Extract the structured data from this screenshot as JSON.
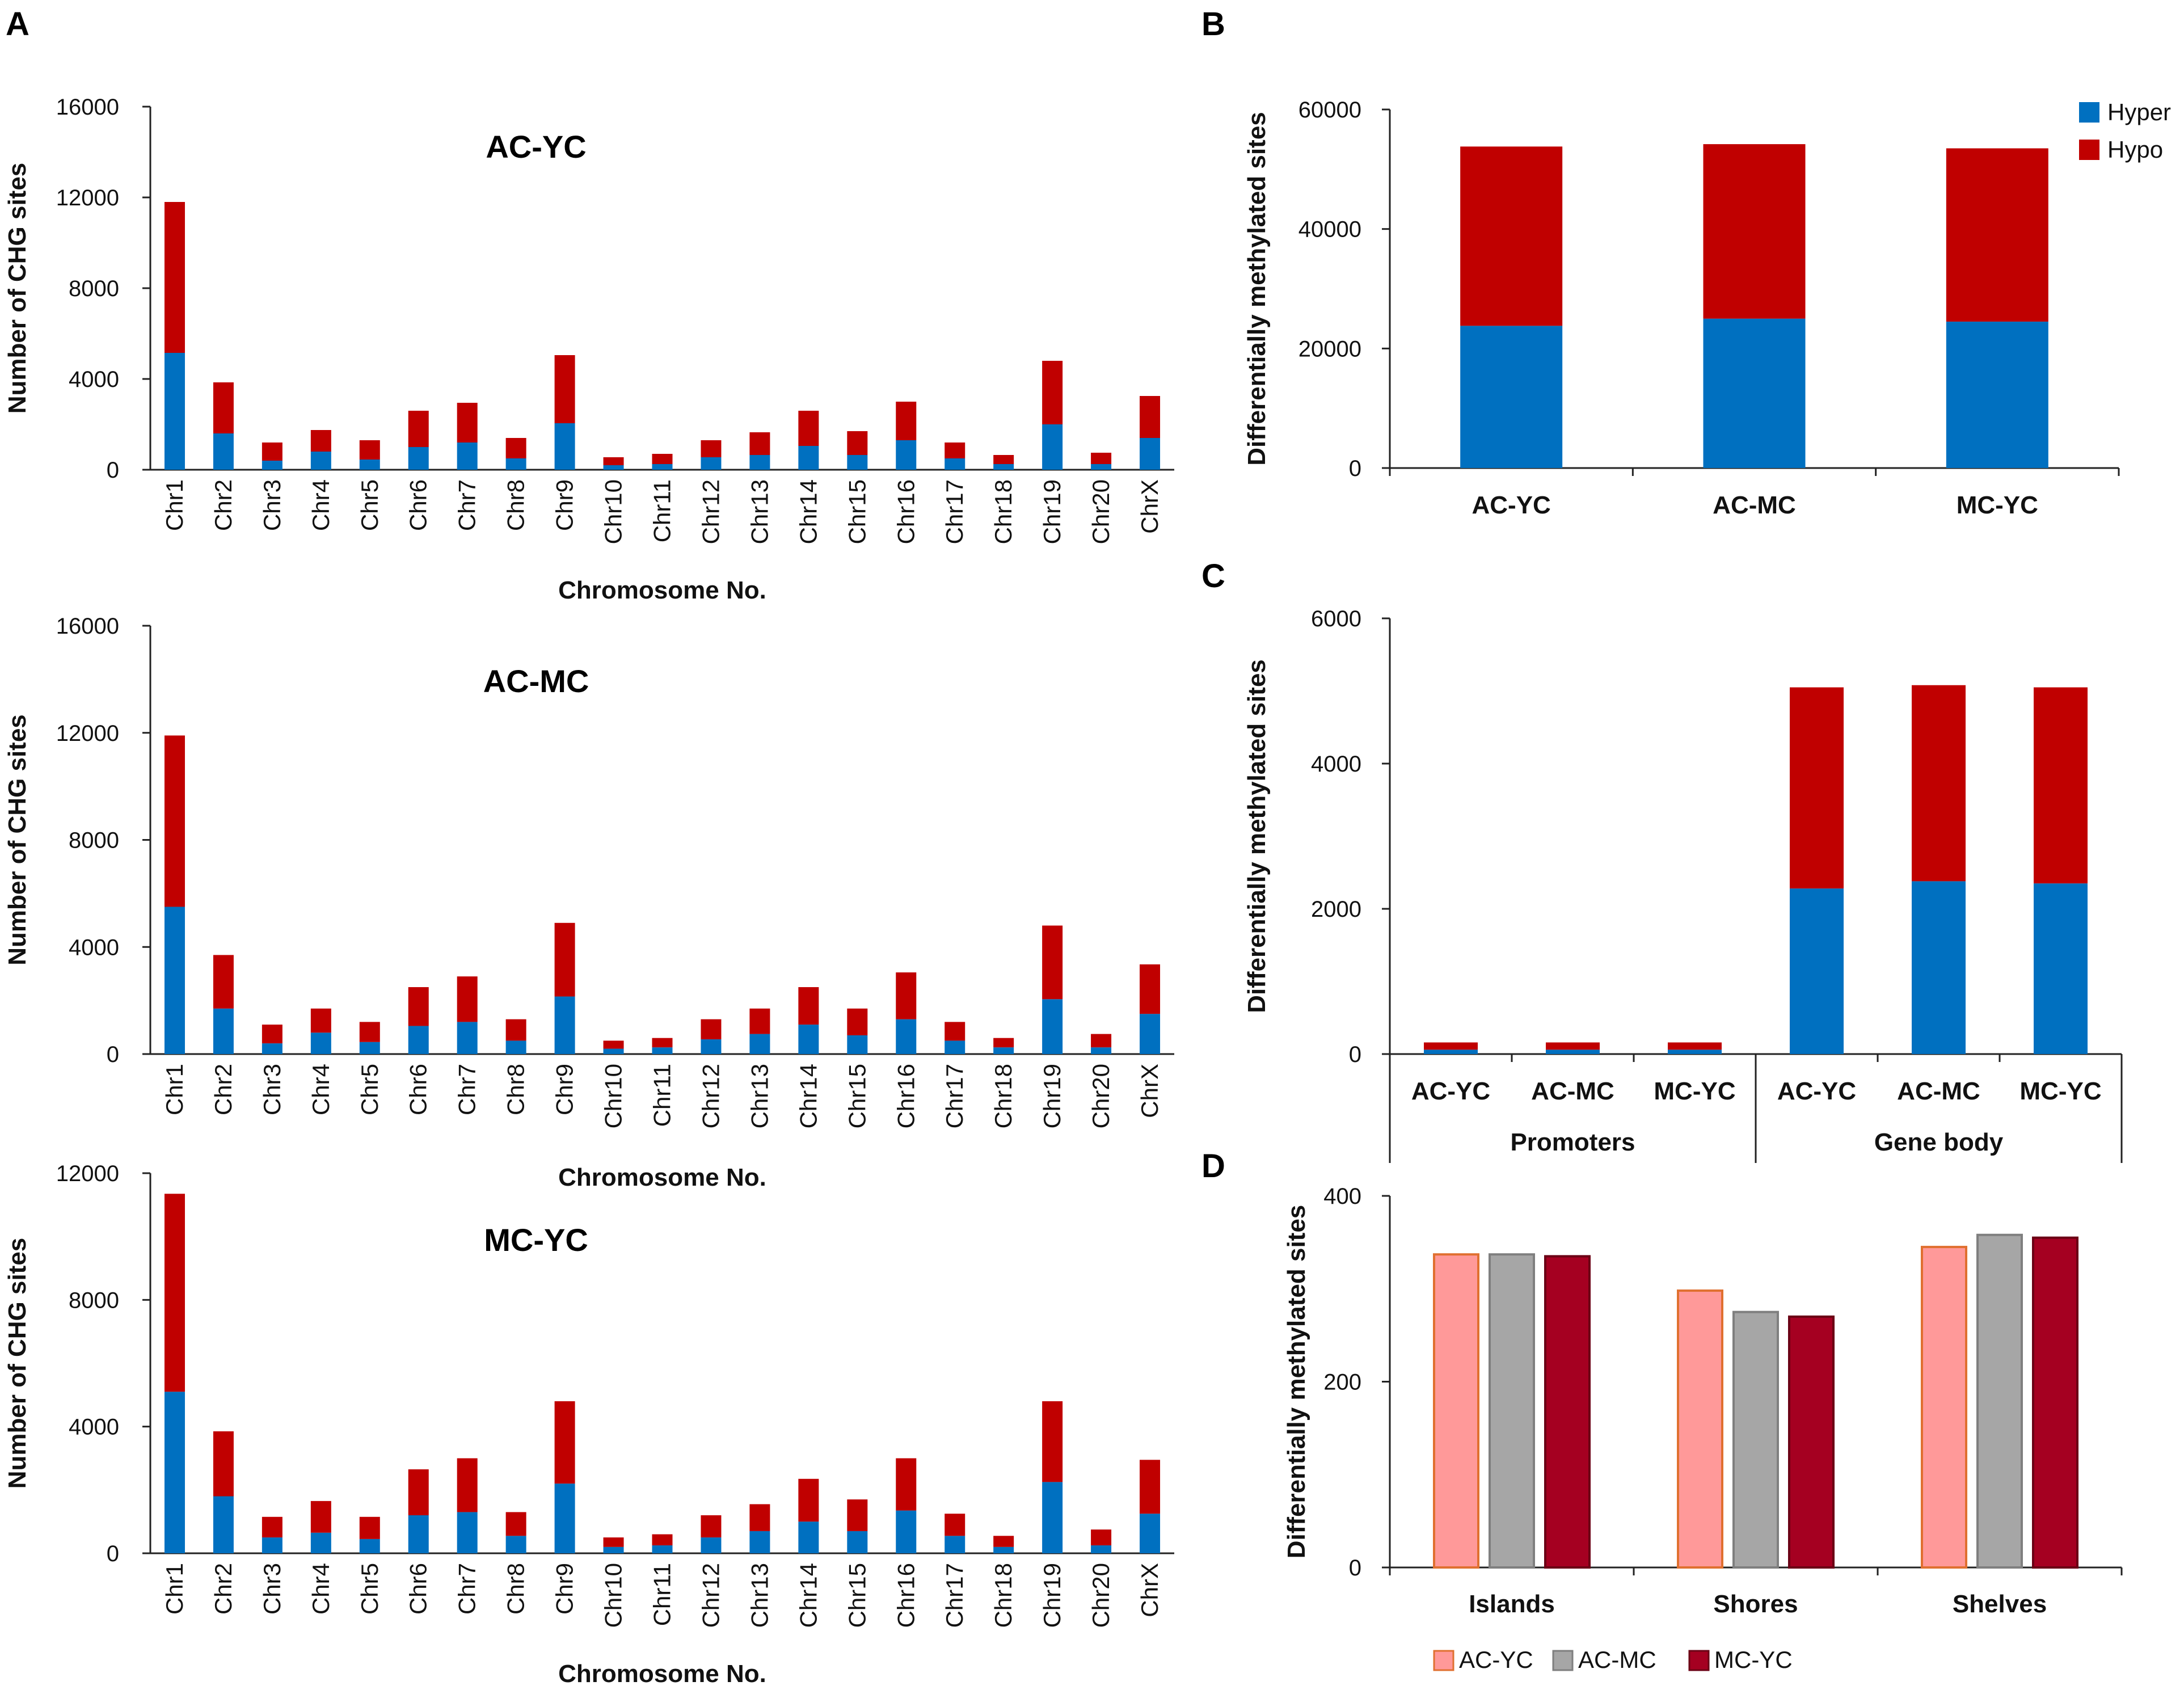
{
  "panel_labels": [
    "A",
    "B",
    "C",
    "D"
  ],
  "colors": {
    "hyper": "#0070c0",
    "hypo": "#c00000",
    "acyc": "#ff9999",
    "acyc_edge": "#e07030",
    "acmc": "#a6a6a6",
    "acmc_edge": "#7f7f7f",
    "mcyc": "#a50021",
    "mcyc_edge": "#6b0015"
  },
  "chart_data": [
    {
      "id": "A1",
      "type": "bar",
      "stacked": true,
      "title": "AC-YC",
      "xlabel": "Chromosome No.",
      "ylabel": "Number of CHG sites",
      "ylim": [
        0,
        16000
      ],
      "yticks": [
        0,
        4000,
        8000,
        12000,
        16000
      ],
      "categories": [
        "Chr1",
        "Chr2",
        "Chr3",
        "Chr4",
        "Chr5",
        "Chr6",
        "Chr7",
        "Chr8",
        "Chr9",
        "Chr10",
        "Chr11",
        "Chr12",
        "Chr13",
        "Chr14",
        "Chr15",
        "Chr16",
        "Chr17",
        "Chr18",
        "Chr19",
        "Chr20",
        "ChrX"
      ],
      "series": [
        {
          "name": "Hyper",
          "values": [
            5150,
            1600,
            400,
            800,
            450,
            1000,
            1200,
            500,
            2050,
            200,
            250,
            550,
            650,
            1050,
            650,
            1300,
            500,
            250,
            2000,
            250,
            1400
          ]
        },
        {
          "name": "Hypo",
          "values": [
            6650,
            2250,
            800,
            950,
            850,
            1600,
            1750,
            900,
            3000,
            350,
            450,
            750,
            1000,
            1550,
            1050,
            1700,
            700,
            400,
            2800,
            500,
            1850
          ]
        }
      ]
    },
    {
      "id": "A2",
      "type": "bar",
      "stacked": true,
      "title": "AC-MC",
      "xlabel": "Chromosome No.",
      "ylabel": "Number of CHG sites",
      "ylim": [
        0,
        16000
      ],
      "yticks": [
        0,
        4000,
        8000,
        12000,
        16000
      ],
      "categories": [
        "Chr1",
        "Chr2",
        "Chr3",
        "Chr4",
        "Chr5",
        "Chr6",
        "Chr7",
        "Chr8",
        "Chr9",
        "Chr10",
        "Chr11",
        "Chr12",
        "Chr13",
        "Chr14",
        "Chr15",
        "Chr16",
        "Chr17",
        "Chr18",
        "Chr19",
        "Chr20",
        "ChrX"
      ],
      "series": [
        {
          "name": "Hyper",
          "values": [
            5500,
            1700,
            400,
            800,
            450,
            1050,
            1200,
            500,
            2150,
            200,
            250,
            550,
            750,
            1100,
            700,
            1300,
            500,
            250,
            2050,
            250,
            1500
          ]
        },
        {
          "name": "Hypo",
          "values": [
            6400,
            2000,
            700,
            900,
            750,
            1450,
            1700,
            800,
            2750,
            300,
            350,
            750,
            950,
            1400,
            1000,
            1750,
            700,
            350,
            2750,
            500,
            1850
          ]
        }
      ]
    },
    {
      "id": "A3",
      "type": "bar",
      "stacked": true,
      "title": "MC-YC",
      "xlabel": "Chromosome No.",
      "ylabel": "Number of CHG sites",
      "ylim": [
        0,
        12000
      ],
      "yticks": [
        0,
        4000,
        8000,
        12000
      ],
      "categories": [
        "Chr1",
        "Chr2",
        "Chr3",
        "Chr4",
        "Chr5",
        "Chr6",
        "Chr7",
        "Chr8",
        "Chr9",
        "Chr10",
        "Chr11",
        "Chr12",
        "Chr13",
        "Chr14",
        "Chr15",
        "Chr16",
        "Chr17",
        "Chr18",
        "Chr19",
        "Chr20",
        "ChrX"
      ],
      "series": [
        {
          "name": "Hyper",
          "values": [
            5100,
            1800,
            500,
            650,
            450,
            1200,
            1300,
            550,
            2200,
            200,
            250,
            500,
            700,
            1000,
            700,
            1350,
            550,
            200,
            2250,
            250,
            1250
          ]
        },
        {
          "name": "Hypo",
          "values": [
            6250,
            2050,
            650,
            1000,
            700,
            1450,
            1700,
            750,
            2600,
            300,
            350,
            700,
            850,
            1350,
            1000,
            1650,
            700,
            350,
            2550,
            500,
            1700
          ]
        }
      ]
    },
    {
      "id": "B",
      "type": "bar",
      "stacked": true,
      "title": "",
      "xlabel": "",
      "ylabel": "Differentially methylated sites",
      "ylim": [
        0,
        60000
      ],
      "yticks": [
        0,
        20000,
        40000,
        60000
      ],
      "categories": [
        "AC-YC",
        "AC-MC",
        "MC-YC"
      ],
      "series": [
        {
          "name": "Hyper",
          "values": [
            23800,
            25000,
            24500
          ]
        },
        {
          "name": "Hypo",
          "values": [
            30000,
            29200,
            29000
          ]
        }
      ],
      "legend": "top-right"
    },
    {
      "id": "C",
      "type": "bar",
      "stacked": true,
      "title": "",
      "xlabel": "",
      "ylabel": "Differentially methylated sites",
      "ylim": [
        0,
        6000
      ],
      "yticks": [
        0,
        2000,
        4000,
        6000
      ],
      "categories": [
        "AC-YC",
        "AC-MC",
        "MC-YC",
        "AC-YC",
        "AC-MC",
        "MC-YC"
      ],
      "groups": [
        {
          "label": "Promoters",
          "count": 3
        },
        {
          "label": "Gene body",
          "count": 3
        }
      ],
      "series": [
        {
          "name": "Hyper",
          "values": [
            60,
            60,
            60,
            2280,
            2380,
            2350
          ]
        },
        {
          "name": "Hypo",
          "values": [
            100,
            100,
            100,
            2770,
            2700,
            2700
          ]
        }
      ]
    },
    {
      "id": "D",
      "type": "bar",
      "stacked": false,
      "title": "",
      "xlabel": "",
      "ylabel": "Differentially methylated sites",
      "ylim": [
        0,
        400
      ],
      "yticks": [
        0,
        200,
        400
      ],
      "categories": [
        "Islands",
        "Shores",
        "Shelves"
      ],
      "series": [
        {
          "name": "AC-YC",
          "values": [
            337,
            298,
            345
          ]
        },
        {
          "name": "AC-MC",
          "values": [
            337,
            275,
            358
          ]
        },
        {
          "name": "MC-YC",
          "values": [
            335,
            270,
            355
          ]
        }
      ],
      "legend": "bottom"
    }
  ]
}
